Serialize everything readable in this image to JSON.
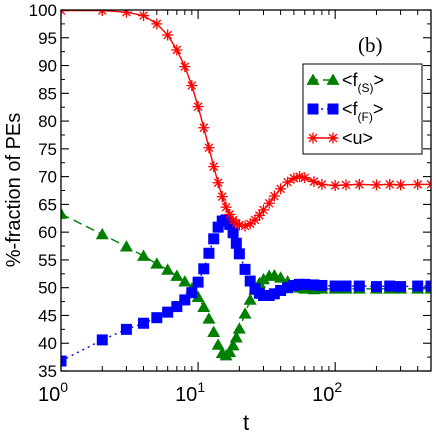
{
  "chart_data": {
    "type": "line",
    "panel_label": "(b)",
    "xlabel": "t",
    "ylabel": "%-fraction of PEs",
    "x_scale": "log",
    "xlim": [
      1,
      500
    ],
    "ylim": [
      35,
      100
    ],
    "y_ticks": [
      35,
      40,
      45,
      50,
      55,
      60,
      65,
      70,
      75,
      80,
      85,
      90,
      95,
      100
    ],
    "x_ticks": [
      {
        "value": 1,
        "base": "10",
        "exp": "0"
      },
      {
        "value": 10,
        "base": "10",
        "exp": "1"
      },
      {
        "value": 100,
        "base": "10",
        "exp": "2"
      }
    ],
    "legend_position": "top-right",
    "series": [
      {
        "key": "fs",
        "name_main": "<f",
        "name_sub": "(S)",
        "name_end": ">",
        "color": "#008000",
        "marker": "triangle",
        "line": "dashed",
        "points": [
          [
            1,
            63.3
          ],
          [
            2,
            59.6
          ],
          [
            3,
            57.4
          ],
          [
            4,
            55.7
          ],
          [
            5,
            54.3
          ],
          [
            6,
            53.2
          ],
          [
            7,
            52.1
          ],
          [
            8,
            51.1
          ],
          [
            9,
            49.8
          ],
          [
            10,
            48.3
          ],
          [
            11,
            46.5
          ],
          [
            12,
            44.4
          ],
          [
            13,
            42.0
          ],
          [
            14,
            39.7
          ],
          [
            15,
            38.2
          ],
          [
            16,
            37.8
          ],
          [
            17,
            38.4
          ],
          [
            18,
            39.6
          ],
          [
            19,
            41.0
          ],
          [
            20,
            42.6
          ],
          [
            22,
            45.3
          ],
          [
            24,
            47.8
          ],
          [
            26,
            49.6
          ],
          [
            28,
            50.8
          ],
          [
            30,
            51.5
          ],
          [
            33,
            52.1
          ],
          [
            36,
            52.2
          ],
          [
            40,
            51.8
          ],
          [
            45,
            51.1
          ],
          [
            50,
            50.4
          ],
          [
            55,
            50.0
          ],
          [
            60,
            49.8
          ],
          [
            70,
            49.7
          ],
          [
            80,
            49.8
          ],
          [
            100,
            49.8
          ],
          [
            120,
            49.8
          ],
          [
            150,
            49.8
          ],
          [
            200,
            49.8
          ],
          [
            250,
            49.8
          ],
          [
            300,
            49.8
          ],
          [
            400,
            49.8
          ],
          [
            500,
            49.8
          ]
        ]
      },
      {
        "key": "ff",
        "name_main": "<f",
        "name_sub": "(F)",
        "name_end": ">",
        "color": "#0000ff",
        "marker": "square",
        "line": "dotted",
        "points": [
          [
            1,
            36.8
          ],
          [
            2,
            40.6
          ],
          [
            3,
            42.5
          ],
          [
            4,
            43.6
          ],
          [
            5,
            44.6
          ],
          [
            6,
            45.6
          ],
          [
            7,
            46.6
          ],
          [
            8,
            47.8
          ],
          [
            9,
            49.1
          ],
          [
            10,
            51.0
          ],
          [
            11,
            53.4
          ],
          [
            12,
            56.2
          ],
          [
            13,
            58.8
          ],
          [
            14,
            60.9
          ],
          [
            15,
            62.0
          ],
          [
            16,
            62.2
          ],
          [
            17,
            61.4
          ],
          [
            18,
            59.9
          ],
          [
            19,
            58.0
          ],
          [
            20,
            56.1
          ],
          [
            22,
            53.3
          ],
          [
            24,
            51.2
          ],
          [
            26,
            49.8
          ],
          [
            28,
            49.0
          ],
          [
            30,
            48.6
          ],
          [
            33,
            48.6
          ],
          [
            36,
            48.9
          ],
          [
            40,
            49.5
          ],
          [
            45,
            50.0
          ],
          [
            50,
            50.4
          ],
          [
            55,
            50.6
          ],
          [
            60,
            50.6
          ],
          [
            70,
            50.5
          ],
          [
            80,
            50.4
          ],
          [
            100,
            50.3
          ],
          [
            120,
            50.3
          ],
          [
            150,
            50.3
          ],
          [
            200,
            50.2
          ],
          [
            250,
            50.3
          ],
          [
            300,
            50.2
          ],
          [
            400,
            50.3
          ],
          [
            500,
            50.3
          ]
        ]
      },
      {
        "key": "u",
        "name_main": "<u>",
        "name_sub": "",
        "name_end": "",
        "color": "#ff0000",
        "marker": "asterisk",
        "line": "solid",
        "points": [
          [
            1,
            99.9
          ],
          [
            2,
            99.9
          ],
          [
            3,
            99.6
          ],
          [
            4,
            99.0
          ],
          [
            5,
            97.5
          ],
          [
            6,
            95.5
          ],
          [
            7,
            92.8
          ],
          [
            8,
            89.8
          ],
          [
            9,
            86.4
          ],
          [
            10,
            82.6
          ],
          [
            11,
            78.8
          ],
          [
            12,
            75.2
          ],
          [
            13,
            71.8
          ],
          [
            14,
            68.9
          ],
          [
            15,
            66.4
          ],
          [
            16,
            64.5
          ],
          [
            17,
            63.2
          ],
          [
            18,
            62.2
          ],
          [
            19,
            61.6
          ],
          [
            20,
            61.3
          ],
          [
            22,
            61.1
          ],
          [
            24,
            61.5
          ],
          [
            26,
            62.2
          ],
          [
            28,
            63.0
          ],
          [
            30,
            64.0
          ],
          [
            33,
            65.2
          ],
          [
            36,
            66.5
          ],
          [
            40,
            67.8
          ],
          [
            45,
            69.0
          ],
          [
            50,
            69.7
          ],
          [
            55,
            70.0
          ],
          [
            60,
            69.8
          ],
          [
            70,
            69.1
          ],
          [
            80,
            68.6
          ],
          [
            100,
            68.4
          ],
          [
            120,
            68.5
          ],
          [
            150,
            68.6
          ],
          [
            200,
            68.5
          ],
          [
            250,
            68.6
          ],
          [
            300,
            68.5
          ],
          [
            400,
            68.6
          ],
          [
            500,
            68.6
          ]
        ]
      }
    ]
  }
}
